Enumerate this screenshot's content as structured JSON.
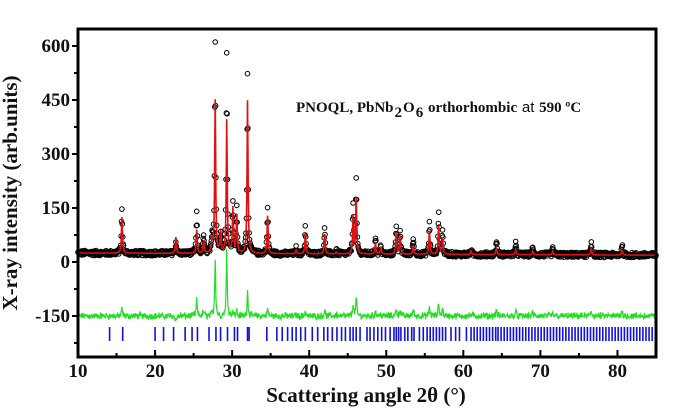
{
  "chart_data": {
    "type": "line",
    "title": "",
    "annotation": {
      "prefix": "PNOQL, PbNb",
      "sub1": "2",
      "mid": "O",
      "sub2": "6",
      "suffix_bold": " orthorhombic ",
      "at": "at",
      "temp": " 590 ºC"
    },
    "xlabel": "Scattering angle 2θ (°)",
    "ylabel": "X-ray intensity (arb.units)",
    "xlim": [
      10,
      85
    ],
    "ylim": [
      -250,
      650
    ],
    "xticks": [
      10,
      20,
      30,
      40,
      50,
      60,
      70,
      80
    ],
    "xtick_labels": [
      "10",
      "20",
      "30",
      "40",
      "50",
      "60",
      "70",
      "80"
    ],
    "xminor": [
      15,
      25,
      35,
      45,
      55,
      65,
      75,
      85
    ],
    "yticks": [
      600,
      450,
      300,
      150,
      0,
      -150
    ],
    "ytick_labels": [
      "600",
      "450",
      "300",
      "150",
      "0",
      "-150"
    ],
    "yminor": [
      525,
      375,
      225,
      75,
      -75,
      -225
    ],
    "grid": false,
    "legend": "none",
    "colors": {
      "observed": "#000000",
      "calculated": "#e01010",
      "difference": "#22dd22",
      "bragg": "#1010e0",
      "axis": "#000000"
    },
    "series": [
      {
        "name": "observed",
        "style": "open-circles"
      },
      {
        "name": "calculated",
        "style": "line"
      },
      {
        "name": "difference",
        "style": "line",
        "offset": -150
      },
      {
        "name": "bragg_positions",
        "style": "ticks"
      }
    ],
    "background_level": 25,
    "peaks": [
      {
        "x": 15.7,
        "obs": 145,
        "calc": 125
      },
      {
        "x": 22.7,
        "obs": 55,
        "calc": 70
      },
      {
        "x": 25.4,
        "obs": 135,
        "calc": 90
      },
      {
        "x": 26.3,
        "obs": 75,
        "calc": 60
      },
      {
        "x": 27.4,
        "obs": 65,
        "calc": 60
      },
      {
        "x": 27.8,
        "obs": 610,
        "calc": 450
      },
      {
        "x": 28.5,
        "obs": 80,
        "calc": 85
      },
      {
        "x": 29.3,
        "obs": 575,
        "calc": 395
      },
      {
        "x": 30.1,
        "obs": 165,
        "calc": 150
      },
      {
        "x": 30.6,
        "obs": 145,
        "calc": 130
      },
      {
        "x": 32.0,
        "obs": 520,
        "calc": 450
      },
      {
        "x": 34.6,
        "obs": 150,
        "calc": 130
      },
      {
        "x": 38.3,
        "obs": 40,
        "calc": 35
      },
      {
        "x": 39.5,
        "obs": 100,
        "calc": 85
      },
      {
        "x": 42.0,
        "obs": 95,
        "calc": 80
      },
      {
        "x": 43.5,
        "obs": 35,
        "calc": 30
      },
      {
        "x": 45.7,
        "obs": 165,
        "calc": 130
      },
      {
        "x": 46.1,
        "obs": 230,
        "calc": 180
      },
      {
        "x": 48.6,
        "obs": 70,
        "calc": 55
      },
      {
        "x": 49.3,
        "obs": 50,
        "calc": 45
      },
      {
        "x": 51.3,
        "obs": 105,
        "calc": 85
      },
      {
        "x": 51.8,
        "obs": 95,
        "calc": 75
      },
      {
        "x": 53.5,
        "obs": 70,
        "calc": 50
      },
      {
        "x": 55.6,
        "obs": 115,
        "calc": 90
      },
      {
        "x": 56.8,
        "obs": 140,
        "calc": 105
      },
      {
        "x": 57.3,
        "obs": 90,
        "calc": 70
      },
      {
        "x": 61.0,
        "obs": 40,
        "calc": 35
      },
      {
        "x": 64.3,
        "obs": 65,
        "calc": 45
      },
      {
        "x": 66.8,
        "obs": 55,
        "calc": 40
      },
      {
        "x": 69.0,
        "obs": 45,
        "calc": 35
      },
      {
        "x": 71.6,
        "obs": 40,
        "calc": 35
      },
      {
        "x": 76.6,
        "obs": 60,
        "calc": 45
      },
      {
        "x": 80.6,
        "obs": 55,
        "calc": 40
      }
    ],
    "bragg_positions": [
      14.1,
      15.8,
      20.0,
      21.1,
      22.4,
      23.9,
      24.8,
      25.5,
      27.0,
      27.9,
      28.5,
      29.4,
      30.3,
      30.7,
      32.0,
      32.2,
      34.5,
      35.8,
      36.5,
      37.2,
      37.8,
      38.3,
      38.9,
      39.5,
      40.4,
      41.1,
      41.9,
      42.4,
      43.0,
      43.6,
      44.2,
      44.7,
      45.3,
      45.7,
      46.1,
      46.6,
      47.5,
      47.9,
      48.4,
      48.9,
      49.4,
      49.9,
      50.5,
      51.0,
      51.3,
      51.6,
      51.9,
      52.4,
      52.8,
      53.3,
      53.6,
      54.3,
      54.8,
      55.3,
      55.7,
      56.1,
      56.5,
      56.9,
      57.3,
      57.7,
      58.4,
      59.0,
      59.5,
      60.4,
      61.0,
      61.4,
      61.8,
      62.2,
      62.6,
      63.0,
      63.4,
      63.8,
      64.2,
      64.5,
      64.9,
      65.3,
      65.7,
      66.1,
      66.5,
      66.9,
      67.3,
      67.7,
      68.1,
      68.5,
      68.9,
      69.3,
      69.7,
      70.1,
      70.5,
      70.9,
      71.3,
      71.7,
      72.1,
      72.5,
      72.9,
      73.3,
      73.7,
      74.1,
      74.5,
      74.9,
      75.3,
      75.7,
      76.1,
      76.5,
      76.9,
      77.3,
      77.7,
      78.1,
      78.5,
      78.9,
      79.3,
      79.7,
      80.1,
      80.5,
      80.9,
      81.3,
      81.7,
      82.1,
      82.5,
      82.9,
      83.3,
      83.7,
      84.1,
      84.5
    ]
  }
}
